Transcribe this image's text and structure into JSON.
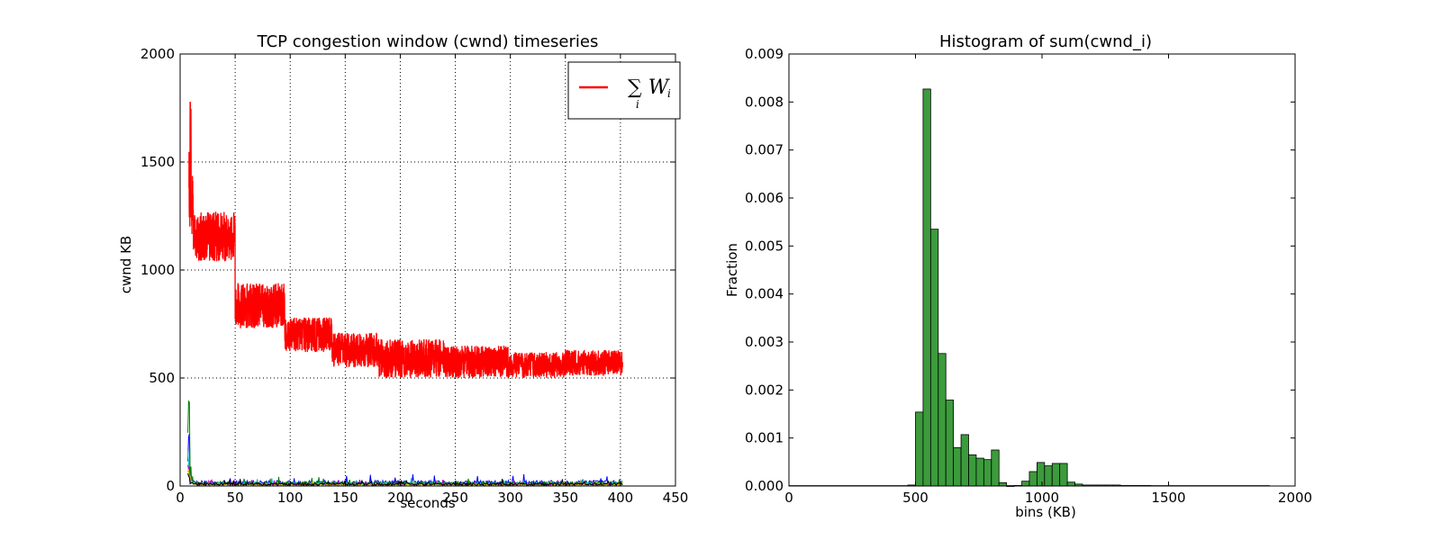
{
  "chart_data": [
    {
      "type": "line",
      "title": "TCP congestion window (cwnd) timeseries",
      "xlabel": "seconds",
      "ylabel": "cwnd KB",
      "xlim": [
        0,
        450
      ],
      "ylim": [
        0,
        2000
      ],
      "xticks": [
        "0",
        "50",
        "100",
        "150",
        "200",
        "250",
        "300",
        "350",
        "400",
        "450"
      ],
      "yticks": [
        "0",
        "500",
        "1000",
        "1500",
        "2000"
      ],
      "grid": true,
      "legend": {
        "placement": "top-right",
        "entries": [
          {
            "label": "∑ W",
            "index": "i",
            "color": "#ff0000"
          }
        ]
      },
      "series": [
        {
          "name": "∑ W",
          "color": "#ff0000",
          "segments": [
            {
              "x0": 8,
              "x1": 9,
              "low": 1200,
              "high": 1580
            },
            {
              "x0": 9,
              "x1": 10,
              "low": 1450,
              "high": 1890
            },
            {
              "x0": 10,
              "x1": 12,
              "low": 1150,
              "high": 1450
            },
            {
              "x0": 12,
              "x1": 50,
              "low": 1040,
              "high": 1270
            },
            {
              "x0": 50,
              "x1": 95,
              "low": 730,
              "high": 940
            },
            {
              "x0": 95,
              "x1": 138,
              "low": 620,
              "high": 780
            },
            {
              "x0": 138,
              "x1": 180,
              "low": 550,
              "high": 710
            },
            {
              "x0": 180,
              "x1": 240,
              "low": 500,
              "high": 680
            },
            {
              "x0": 240,
              "x1": 300,
              "low": 500,
              "high": 650
            },
            {
              "x0": 300,
              "x1": 350,
              "low": 500,
              "high": 620
            },
            {
              "x0": 350,
              "x1": 402,
              "low": 510,
              "high": 630
            }
          ]
        },
        {
          "name": "",
          "color": "#0000ff",
          "level": 15,
          "peak": 250
        },
        {
          "name": "",
          "color": "#008000",
          "level": 12,
          "peak": 420
        },
        {
          "name": "",
          "color": "#00bfbf",
          "level": 10,
          "peak": 180
        },
        {
          "name": "",
          "color": "#bf00bf",
          "level": 8,
          "peak": 120
        },
        {
          "name": "",
          "color": "#bfbf00",
          "level": 7,
          "peak": 100
        },
        {
          "name": "",
          "color": "#000000",
          "level": 9,
          "peak": 90
        }
      ]
    },
    {
      "type": "bar",
      "title": "Histogram of sum(cwnd_i)",
      "xlabel": "bins (KB)",
      "ylabel": "Fraction",
      "xlim": [
        0,
        2000
      ],
      "ylim": [
        0,
        0.009
      ],
      "xticks": [
        "0",
        "500",
        "1000",
        "1500",
        "2000"
      ],
      "yticks": [
        "0.000",
        "0.001",
        "0.002",
        "0.003",
        "0.004",
        "0.005",
        "0.006",
        "0.007",
        "0.008",
        "0.009"
      ],
      "grid": false,
      "bar_color": "#3c9b3c",
      "bin_width": 30,
      "bins": [
        {
          "x": 470,
          "value": 2e-05
        },
        {
          "x": 500,
          "value": 0.00154
        },
        {
          "x": 530,
          "value": 0.00827
        },
        {
          "x": 560,
          "value": 0.00535
        },
        {
          "x": 590,
          "value": 0.00276
        },
        {
          "x": 620,
          "value": 0.00179
        },
        {
          "x": 650,
          "value": 0.0008
        },
        {
          "x": 680,
          "value": 0.00107
        },
        {
          "x": 710,
          "value": 0.00065
        },
        {
          "x": 740,
          "value": 0.00058
        },
        {
          "x": 770,
          "value": 0.00055
        },
        {
          "x": 800,
          "value": 0.00075
        },
        {
          "x": 830,
          "value": 7e-05
        },
        {
          "x": 860,
          "value": 0.0
        },
        {
          "x": 890,
          "value": 1e-05
        },
        {
          "x": 920,
          "value": 0.0001
        },
        {
          "x": 950,
          "value": 0.0003
        },
        {
          "x": 980,
          "value": 0.00049
        },
        {
          "x": 1010,
          "value": 0.00042
        },
        {
          "x": 1040,
          "value": 0.00047
        },
        {
          "x": 1070,
          "value": 0.00047
        },
        {
          "x": 1100,
          "value": 8e-05
        },
        {
          "x": 1130,
          "value": 4e-05
        },
        {
          "x": 1160,
          "value": 2e-05
        },
        {
          "x": 1190,
          "value": 2e-05
        },
        {
          "x": 1220,
          "value": 2e-05
        },
        {
          "x": 1250,
          "value": 2e-05
        },
        {
          "x": 1280,
          "value": 2e-05
        },
        {
          "x": 1310,
          "value": 1e-05
        },
        {
          "x": 1340,
          "value": 1e-05
        },
        {
          "x": 1370,
          "value": 1e-05
        },
        {
          "x": 1400,
          "value": 1e-05
        }
      ]
    }
  ]
}
